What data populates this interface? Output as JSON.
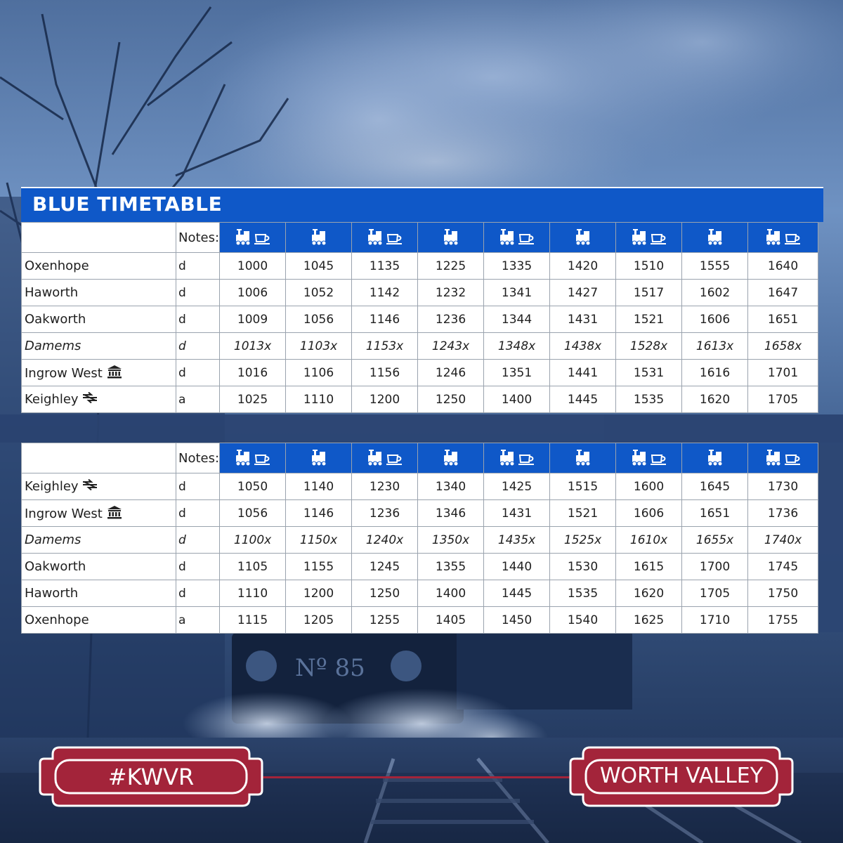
{
  "title": "BLUE TIMETABLE",
  "notes_label": "Notes:",
  "service_icons": [
    "steam-buffet",
    "steam",
    "steam-buffet",
    "steam",
    "steam-buffet",
    "steam",
    "steam-buffet",
    "steam",
    "steam-buffet"
  ],
  "table_up": {
    "rows": [
      {
        "station": "Oxenhope",
        "note": "d",
        "times": [
          "1000",
          "1045",
          "1135",
          "1225",
          "1335",
          "1420",
          "1510",
          "1555",
          "1640"
        ]
      },
      {
        "station": "Haworth",
        "note": "d",
        "times": [
          "1006",
          "1052",
          "1142",
          "1232",
          "1341",
          "1427",
          "1517",
          "1602",
          "1647"
        ]
      },
      {
        "station": "Oakworth",
        "note": "d",
        "times": [
          "1009",
          "1056",
          "1146",
          "1236",
          "1344",
          "1431",
          "1521",
          "1606",
          "1651"
        ]
      },
      {
        "station": "Damems",
        "note": "d",
        "italic": true,
        "times": [
          "1013x",
          "1103x",
          "1153x",
          "1243x",
          "1348x",
          "1438x",
          "1528x",
          "1613x",
          "1658x"
        ]
      },
      {
        "station": "Ingrow West",
        "icon": "museum-icon",
        "note": "d",
        "times": [
          "1016",
          "1106",
          "1156",
          "1246",
          "1351",
          "1441",
          "1531",
          "1616",
          "1701"
        ]
      },
      {
        "station": "Keighley",
        "icon": "national-rail-icon",
        "note": "a",
        "times": [
          "1025",
          "1110",
          "1200",
          "1250",
          "1400",
          "1445",
          "1535",
          "1620",
          "1705"
        ]
      }
    ]
  },
  "table_down": {
    "rows": [
      {
        "station": "Keighley",
        "icon": "national-rail-icon",
        "note": "d",
        "times": [
          "1050",
          "1140",
          "1230",
          "1340",
          "1425",
          "1515",
          "1600",
          "1645",
          "1730"
        ]
      },
      {
        "station": "Ingrow West",
        "icon": "museum-icon",
        "note": "d",
        "times": [
          "1056",
          "1146",
          "1236",
          "1346",
          "1431",
          "1521",
          "1606",
          "1651",
          "1736"
        ]
      },
      {
        "station": "Damems",
        "note": "d",
        "italic": true,
        "times": [
          "1100x",
          "1150x",
          "1240x",
          "1350x",
          "1435x",
          "1525x",
          "1610x",
          "1655x",
          "1740x"
        ]
      },
      {
        "station": "Oakworth",
        "note": "d",
        "times": [
          "1105",
          "1155",
          "1245",
          "1355",
          "1440",
          "1530",
          "1615",
          "1700",
          "1745"
        ]
      },
      {
        "station": "Haworth",
        "note": "d",
        "times": [
          "1110",
          "1200",
          "1250",
          "1400",
          "1445",
          "1535",
          "1620",
          "1705",
          "1750"
        ]
      },
      {
        "station": "Oxenhope",
        "note": "a",
        "times": [
          "1115",
          "1205",
          "1255",
          "1405",
          "1450",
          "1540",
          "1625",
          "1710",
          "1755"
        ]
      }
    ]
  },
  "footer": {
    "left_sign": "#KWVR",
    "right_sign": "WORTH VALLEY"
  },
  "colors": {
    "header_blue": "#0f58c8",
    "sign_red": "#a3243a"
  }
}
